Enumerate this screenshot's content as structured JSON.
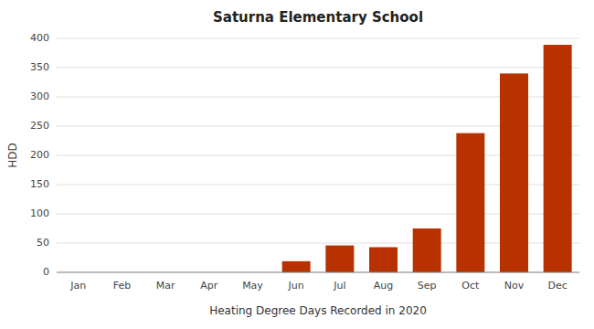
{
  "chart_data": {
    "type": "bar",
    "title": "Saturna Elementary School",
    "xlabel": "Heating Degree Days Recorded in 2020",
    "ylabel": "HDD",
    "categories": [
      "Jan",
      "Feb",
      "Mar",
      "Apr",
      "May",
      "Jun",
      "Jul",
      "Aug",
      "Sep",
      "Oct",
      "Nov",
      "Dec"
    ],
    "values": [
      0,
      0,
      0,
      0,
      0,
      19,
      46,
      43,
      75,
      238,
      340,
      389
    ],
    "color": "#b83200",
    "ylim": [
      0,
      400
    ],
    "yticks": [
      0,
      50,
      100,
      150,
      200,
      250,
      300,
      350,
      400
    ],
    "grid": true
  }
}
